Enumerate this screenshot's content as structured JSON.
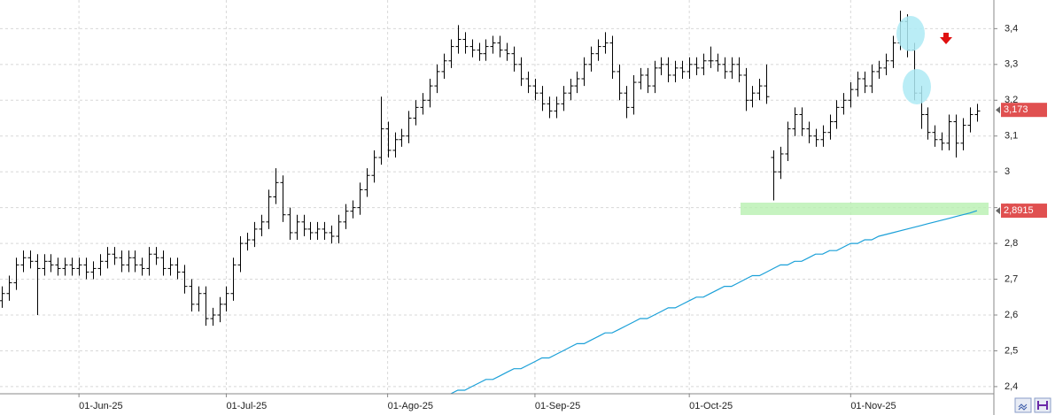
{
  "chart_data": {
    "type": "ohlc",
    "color": "#000000",
    "grid": true,
    "categories": [
      null,
      null,
      null,
      null,
      null,
      null,
      null,
      null,
      null,
      null,
      null,
      "01-Jun-25",
      null,
      null,
      null,
      null,
      null,
      null,
      null,
      null,
      null,
      null,
      null,
      null,
      null,
      null,
      null,
      null,
      null,
      null,
      null,
      null,
      "01-Jul-25",
      null,
      null,
      null,
      null,
      null,
      null,
      null,
      null,
      null,
      null,
      null,
      null,
      null,
      null,
      null,
      null,
      null,
      null,
      null,
      null,
      null,
      null,
      "01-Ago-25",
      null,
      null,
      null,
      null,
      null,
      null,
      null,
      null,
      null,
      null,
      null,
      null,
      null,
      null,
      null,
      null,
      null,
      null,
      null,
      null,
      "01-Sep-25",
      null,
      null,
      null,
      null,
      null,
      null,
      null,
      null,
      null,
      null,
      null,
      null,
      null,
      null,
      null,
      null,
      null,
      null,
      null,
      null,
      null,
      "01-Oct-25",
      null,
      null,
      null,
      null,
      null,
      null,
      null,
      null,
      null,
      null,
      null,
      null,
      null,
      null,
      null,
      null,
      null,
      null,
      null,
      null,
      null,
      null,
      "01-Nov-25",
      null,
      null,
      null,
      null,
      null,
      null,
      null,
      null,
      null,
      null,
      null,
      null,
      null,
      null,
      null,
      null,
      null,
      null
    ],
    "open": [
      2.64,
      2.66,
      2.69,
      2.74,
      2.76,
      2.75,
      2.73,
      2.75,
      2.74,
      2.73,
      2.74,
      2.73,
      2.74,
      2.72,
      2.73,
      2.75,
      2.77,
      2.76,
      2.74,
      2.76,
      2.74,
      2.73,
      2.77,
      2.76,
      2.73,
      2.74,
      2.72,
      2.68,
      2.63,
      2.66,
      2.59,
      2.6,
      2.63,
      2.66,
      2.74,
      2.8,
      2.81,
      2.84,
      2.86,
      2.93,
      2.97,
      2.88,
      2.83,
      2.86,
      2.84,
      2.83,
      2.84,
      2.83,
      2.82,
      2.86,
      2.89,
      2.9,
      2.95,
      2.99,
      3.04,
      3.12,
      3.06,
      3.09,
      3.1,
      3.15,
      3.18,
      3.2,
      3.24,
      3.28,
      3.31,
      3.35,
      3.37,
      3.35,
      3.34,
      3.33,
      3.35,
      3.36,
      3.34,
      3.33,
      3.3,
      3.26,
      3.24,
      3.22,
      3.19,
      3.17,
      3.19,
      3.22,
      3.24,
      3.26,
      3.3,
      3.33,
      3.35,
      3.36,
      3.28,
      3.22,
      3.18,
      3.25,
      3.27,
      3.24,
      3.29,
      3.3,
      3.27,
      3.29,
      3.28,
      3.3,
      3.29,
      3.31,
      3.31,
      3.3,
      3.28,
      3.3,
      3.27,
      3.2,
      3.22,
      3.24,
      3.04,
      3.0,
      3.05,
      3.12,
      3.16,
      3.12,
      3.1,
      3.09,
      3.11,
      3.14,
      3.18,
      3.2,
      3.23,
      3.26,
      3.24,
      3.28,
      3.29,
      3.31,
      3.36,
      3.42,
      3.34,
      3.22,
      3.16,
      3.11,
      3.09,
      3.08,
      3.14,
      3.08,
      3.13,
      3.16
    ],
    "high": [
      2.68,
      2.71,
      2.76,
      2.78,
      2.78,
      2.77,
      2.77,
      2.77,
      2.76,
      2.76,
      2.76,
      2.76,
      2.76,
      2.75,
      2.77,
      2.79,
      2.79,
      2.78,
      2.78,
      2.78,
      2.76,
      2.79,
      2.79,
      2.78,
      2.76,
      2.76,
      2.74,
      2.7,
      2.68,
      2.68,
      2.62,
      2.65,
      2.68,
      2.76,
      2.82,
      2.83,
      2.86,
      2.88,
      2.95,
      3.01,
      2.99,
      2.9,
      2.88,
      2.88,
      2.86,
      2.86,
      2.86,
      2.85,
      2.88,
      2.91,
      2.92,
      2.97,
      3.01,
      3.06,
      3.21,
      3.14,
      3.11,
      3.12,
      3.17,
      3.2,
      3.22,
      3.26,
      3.3,
      3.33,
      3.37,
      3.41,
      3.39,
      3.37,
      3.36,
      3.37,
      3.38,
      3.38,
      3.36,
      3.35,
      3.32,
      3.28,
      3.26,
      3.24,
      3.21,
      3.21,
      3.24,
      3.26,
      3.28,
      3.32,
      3.35,
      3.37,
      3.39,
      3.38,
      3.3,
      3.24,
      3.27,
      3.29,
      3.29,
      3.31,
      3.32,
      3.32,
      3.31,
      3.31,
      3.32,
      3.32,
      3.33,
      3.35,
      3.33,
      3.32,
      3.32,
      3.32,
      3.29,
      3.24,
      3.26,
      3.3,
      3.06,
      3.07,
      3.14,
      3.18,
      3.18,
      3.14,
      3.12,
      3.13,
      3.16,
      3.2,
      3.22,
      3.25,
      3.28,
      3.28,
      3.3,
      3.31,
      3.33,
      3.38,
      3.45,
      3.44,
      3.36,
      3.24,
      3.18,
      3.13,
      3.11,
      3.16,
      3.16,
      3.15,
      3.18,
      3.19
    ],
    "low": [
      2.62,
      2.64,
      2.67,
      2.72,
      2.73,
      2.6,
      2.71,
      2.72,
      2.71,
      2.71,
      2.71,
      2.71,
      2.7,
      2.7,
      2.71,
      2.73,
      2.74,
      2.72,
      2.72,
      2.72,
      2.71,
      2.71,
      2.74,
      2.71,
      2.71,
      2.7,
      2.66,
      2.61,
      2.61,
      2.57,
      2.57,
      2.58,
      2.61,
      2.64,
      2.72,
      2.78,
      2.79,
      2.82,
      2.84,
      2.91,
      2.86,
      2.81,
      2.81,
      2.82,
      2.81,
      2.81,
      2.81,
      2.8,
      2.8,
      2.84,
      2.87,
      2.88,
      2.93,
      2.97,
      3.02,
      3.04,
      3.04,
      3.07,
      3.08,
      3.13,
      3.16,
      3.18,
      3.22,
      3.26,
      3.29,
      3.33,
      3.33,
      3.32,
      3.31,
      3.31,
      3.33,
      3.32,
      3.31,
      3.28,
      3.24,
      3.22,
      3.2,
      3.17,
      3.15,
      3.15,
      3.17,
      3.2,
      3.22,
      3.24,
      3.28,
      3.31,
      3.33,
      3.26,
      3.2,
      3.15,
      3.16,
      3.23,
      3.22,
      3.22,
      3.27,
      3.25,
      3.25,
      3.26,
      3.26,
      3.27,
      3.27,
      3.29,
      3.28,
      3.26,
      3.26,
      3.25,
      3.17,
      3.18,
      3.2,
      3.19,
      2.92,
      2.98,
      3.03,
      3.1,
      3.1,
      3.08,
      3.07,
      3.07,
      3.09,
      3.12,
      3.16,
      3.18,
      3.21,
      3.22,
      3.22,
      3.26,
      3.27,
      3.29,
      3.34,
      3.32,
      3.2,
      3.12,
      3.09,
      3.07,
      3.06,
      3.06,
      3.04,
      3.06,
      3.11,
      3.14
    ],
    "close": [
      2.66,
      2.69,
      2.74,
      2.76,
      2.75,
      2.73,
      2.75,
      2.74,
      2.73,
      2.74,
      2.73,
      2.74,
      2.72,
      2.73,
      2.75,
      2.77,
      2.76,
      2.74,
      2.76,
      2.74,
      2.73,
      2.77,
      2.76,
      2.73,
      2.74,
      2.72,
      2.68,
      2.63,
      2.66,
      2.59,
      2.6,
      2.63,
      2.66,
      2.74,
      2.8,
      2.81,
      2.84,
      2.86,
      2.93,
      2.97,
      2.88,
      2.83,
      2.86,
      2.84,
      2.83,
      2.84,
      2.83,
      2.82,
      2.86,
      2.89,
      2.9,
      2.95,
      2.99,
      3.04,
      3.12,
      3.06,
      3.09,
      3.1,
      3.15,
      3.18,
      3.2,
      3.24,
      3.28,
      3.31,
      3.35,
      3.37,
      3.35,
      3.34,
      3.33,
      3.35,
      3.36,
      3.34,
      3.33,
      3.3,
      3.26,
      3.24,
      3.22,
      3.19,
      3.17,
      3.19,
      3.22,
      3.24,
      3.26,
      3.3,
      3.33,
      3.35,
      3.36,
      3.28,
      3.22,
      3.18,
      3.25,
      3.27,
      3.24,
      3.29,
      3.3,
      3.27,
      3.29,
      3.28,
      3.3,
      3.29,
      3.31,
      3.31,
      3.3,
      3.28,
      3.3,
      3.27,
      3.2,
      3.22,
      3.24,
      3.21,
      3.0,
      3.05,
      3.12,
      3.16,
      3.12,
      3.1,
      3.09,
      3.11,
      3.14,
      3.18,
      3.2,
      3.23,
      3.26,
      3.24,
      3.28,
      3.29,
      3.31,
      3.36,
      3.42,
      3.34,
      3.22,
      3.16,
      3.11,
      3.09,
      3.08,
      3.14,
      3.08,
      3.13,
      3.16,
      3.17
    ],
    "overlay": {
      "color": "#1ba0d8",
      "values": [
        null,
        null,
        null,
        null,
        null,
        null,
        null,
        null,
        null,
        null,
        null,
        null,
        null,
        null,
        null,
        null,
        null,
        null,
        null,
        null,
        null,
        null,
        null,
        null,
        null,
        null,
        null,
        null,
        null,
        null,
        null,
        null,
        null,
        null,
        null,
        null,
        null,
        null,
        null,
        null,
        null,
        null,
        null,
        null,
        null,
        null,
        null,
        null,
        null,
        null,
        null,
        null,
        null,
        null,
        null,
        null,
        null,
        null,
        null,
        null,
        null,
        null,
        null,
        null,
        2.38,
        2.39,
        2.39,
        2.4,
        2.41,
        2.42,
        2.42,
        2.43,
        2.44,
        2.45,
        2.45,
        2.46,
        2.47,
        2.48,
        2.48,
        2.49,
        2.5,
        2.51,
        2.52,
        2.52,
        2.53,
        2.54,
        2.55,
        2.55,
        2.56,
        2.57,
        2.58,
        2.59,
        2.59,
        2.6,
        2.61,
        2.62,
        2.62,
        2.63,
        2.64,
        2.65,
        2.65,
        2.66,
        2.67,
        2.68,
        2.68,
        2.69,
        2.7,
        2.71,
        2.71,
        2.72,
        2.73,
        2.74,
        2.74,
        2.75,
        2.75,
        2.76,
        2.77,
        2.77,
        2.78,
        2.78,
        2.79,
        2.8,
        2.8,
        2.81,
        2.81,
        2.82,
        2.825,
        2.83,
        2.835,
        2.84,
        2.845,
        2.85,
        2.855,
        2.86,
        2.865,
        2.87,
        2.875,
        2.88,
        2.885,
        2.8915
      ],
      "end_label": {
        "value": 2.8915,
        "label": "2,8915"
      }
    },
    "last_price": {
      "value": 3.173,
      "label": "3,173"
    },
    "ylim": [
      2.38,
      3.48
    ],
    "yticks": [
      {
        "value": 2.4,
        "label": "2,4"
      },
      {
        "value": 2.5,
        "label": "2,5"
      },
      {
        "value": 2.6,
        "label": "2,6"
      },
      {
        "value": 2.7,
        "label": "2,7"
      },
      {
        "value": 2.8,
        "label": "2,8"
      },
      {
        "value": 2.9,
        "label": "2,9"
      },
      {
        "value": 3,
        "label": "3"
      },
      {
        "value": 3.1,
        "label": "3,1"
      },
      {
        "value": 3.2,
        "label": "3,2"
      },
      {
        "value": 3.3,
        "label": "3,3"
      },
      {
        "value": 3.4,
        "label": "3,4"
      }
    ]
  }
}
